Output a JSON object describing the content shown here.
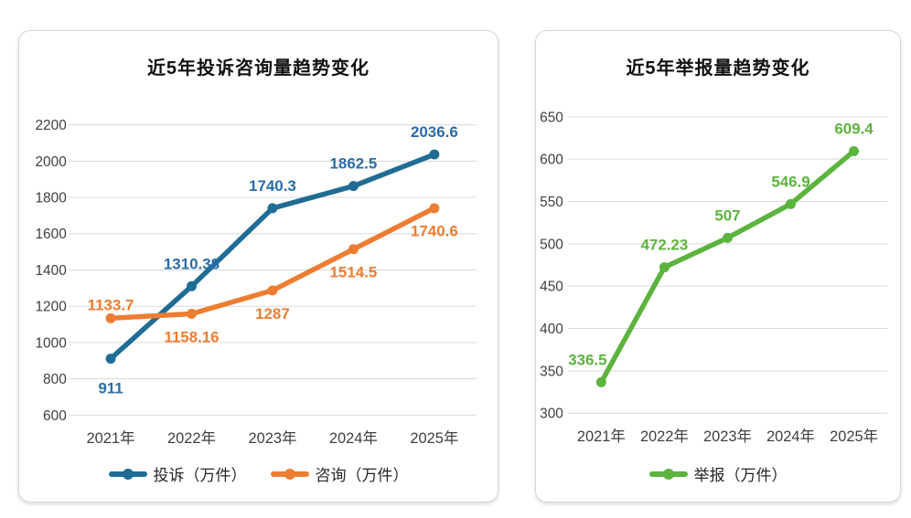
{
  "background_color": "#FFFFFF",
  "grid_color": "#D9D9D9",
  "axis_label_color": "#3F3F3F",
  "title_color": "#111111",
  "chart_data": [
    {
      "type": "line",
      "title": "近5年投诉咨询量趋势变化",
      "categories": [
        "2021年",
        "2022年",
        "2023年",
        "2024年",
        "2025年"
      ],
      "series": [
        {
          "name": "投诉（万件）",
          "color": "#1F6C94",
          "label_color": "#2B6CA8",
          "values": [
            911,
            1310.38,
            1740.3,
            1862.5,
            2036.6
          ],
          "label_positions": [
            "below-far",
            "above",
            "above",
            "above",
            "above"
          ]
        },
        {
          "name": "咨询（万件）",
          "color": "#ED7D31",
          "label_color": "#ED7D31",
          "values": [
            1133.7,
            1158.16,
            1287,
            1514.5,
            1740.6
          ],
          "label_positions": [
            "above-near",
            "below",
            "below",
            "below",
            "below"
          ]
        }
      ],
      "ylim": [
        600,
        2200
      ],
      "ytick_step": 200,
      "yticks": [
        600,
        800,
        1000,
        1200,
        1400,
        1600,
        1800,
        2000,
        2200
      ],
      "grid": true,
      "legend_position": "bottom"
    },
    {
      "type": "line",
      "title": "近5年举报量趋势变化",
      "categories": [
        "2021年",
        "2022年",
        "2023年",
        "2024年",
        "2025年"
      ],
      "series": [
        {
          "name": "举报（万件）",
          "color": "#5CB33E",
          "label_color": "#5CB33E",
          "values": [
            336.5,
            472.23,
            507,
            546.9,
            609.4
          ],
          "label_positions": [
            "above-left",
            "above",
            "above",
            "above",
            "above"
          ]
        }
      ],
      "ylim": [
        300,
        650
      ],
      "ytick_step": 50,
      "yticks": [
        300,
        350,
        400,
        450,
        500,
        550,
        600,
        650
      ],
      "grid": true,
      "legend_position": "bottom"
    }
  ]
}
